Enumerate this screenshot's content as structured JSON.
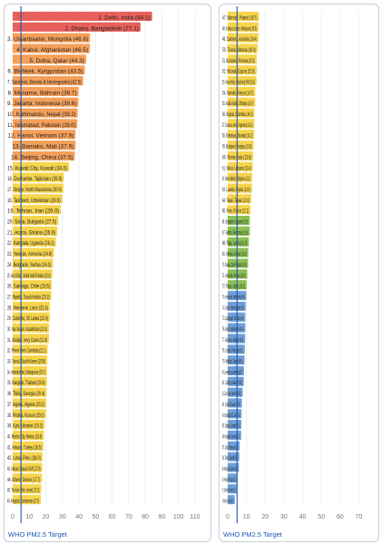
{
  "chart_data": [
    {
      "type": "bar",
      "orientation": "horizontal",
      "xlim": [
        0,
        110
      ],
      "xticks": [
        "0",
        "10",
        "20",
        "30",
        "40",
        "50",
        "60",
        "70",
        "80",
        "90",
        "100",
        "110"
      ],
      "reference_line": {
        "value": 5,
        "label": "WHO PM2.5 Target",
        "color": "#1a56b8"
      },
      "grid": true,
      "categories": [
        "1. Delhi, India (84.1)",
        "2. Dhaka, Bangladesh (77.1)",
        "3. Ulaanbaatar, Mongolia (46.6)",
        "4. Kabul, Afghanistan (46.5)",
        "5. Doha, Qatar (44.3)",
        "6. Bishkek, Kyrgyzstan (43.5)",
        "7. Sarajevo, Bosnia & Herzegovina (42.5)",
        "8. Manama, Bahrain (39.7)",
        "9. Jakarta, Indonesia (39.6)",
        "10. Kathmandu, Nepal (39.2)",
        "11. Islamabad, Pakistan (39.0)",
        "12. Hanoi, Vietnam (37.9)",
        "13. Bamako, Mali (37.9)",
        "14. Beijing, China (37.5)",
        "15. Kuwait City, Kuwait (34.0)",
        "16. Dushanbe, Tajikistan (30.9)",
        "17. Skopje, North Macedonia (30.6)",
        "18. Tashkent, Uzbekistan (29.9)",
        "19. Tehran, Iran (29.0)",
        "20. Sofia, Bulgaria (27.5)",
        "21. Accra, Ghana (26.9)",
        "22. Kampala, Uganda (26.1)",
        "23. Yerevan, Armenia (24.9)",
        "24. Belgrade, Serbia (24.3)",
        "25. Abu Dhabi, United Arab Emirates (23.9)",
        "26. Santiago, Chile (23.6)",
        "27. Riyadh, Saudi Arabia (23.3)",
        "28. Vientiane, Laos (22.4)",
        "29. Colombo, Sri Lanka (22.4)",
        "30. Nur-Sultan, Kazakhstan (21.9)",
        "31. Abidjan, Ivory Coast (21.9)",
        "32. Phnom Penh, Cambodia (21.1)",
        "33. Seoul, South Korea (20.9)",
        "34. Antananarivo, Madagascar (20.7)",
        "35. Bangkok, Thailand (20.6)",
        "36. Tbilisi, Georgia (20.4)",
        "37. Algiers, Algeria (20.2)",
        "38. Pristina, Kosovo (20.0)",
        "39. Kyiv, Ukraine (19.2)",
        "40. Mexico City, Mexico (18.8)",
        "41. Ankara, Turkey (18.5)",
        "42. Lima, Peru (18.0)",
        "43. Macao, Macao SAR (17.8)",
        "44. Athens, Greece (17.7)",
        "45. Tel Aviv-Yafo, Israel (17.2)",
        "46. Ashgabat, Turkmenistan (17.0)"
      ],
      "values": [
        84.1,
        77.1,
        46.6,
        46.5,
        44.3,
        43.5,
        42.5,
        39.7,
        39.6,
        39.2,
        39.0,
        37.9,
        37.9,
        37.5,
        34.0,
        30.9,
        30.6,
        29.9,
        29.0,
        27.5,
        26.9,
        26.1,
        24.9,
        24.3,
        23.9,
        23.6,
        23.3,
        22.4,
        22.4,
        21.9,
        21.9,
        21.1,
        20.9,
        20.7,
        20.6,
        20.4,
        20.2,
        20.0,
        19.2,
        18.8,
        18.5,
        18.0,
        17.8,
        17.7,
        17.2,
        17.0
      ],
      "colors": [
        "#e8605a",
        "#e8605a",
        "#f5a05a",
        "#f5a05a",
        "#f5a05a",
        "#f5a05a",
        "#f5a05a",
        "#f5a05a",
        "#f5a05a",
        "#f5a05a",
        "#f5a05a",
        "#f5a05a",
        "#f5a05a",
        "#f5a05a",
        "#f7d44c",
        "#f7d44c",
        "#f7d44c",
        "#f7d44c",
        "#f7d44c",
        "#f7d44c",
        "#f7d44c",
        "#f7d44c",
        "#f7d44c",
        "#f7d44c",
        "#f7d44c",
        "#f7d44c",
        "#f7d44c",
        "#f7d44c",
        "#f7d44c",
        "#f7d44c",
        "#f7d44c",
        "#f7d44c",
        "#f7d44c",
        "#f7d44c",
        "#f7d44c",
        "#f7d44c",
        "#f7d44c",
        "#f7d44c",
        "#f7d44c",
        "#f7d44c",
        "#f7d44c",
        "#f7d44c",
        "#f7d44c",
        "#f7d44c",
        "#f7d44c",
        "#f7d44c"
      ]
    },
    {
      "type": "bar",
      "orientation": "horizontal",
      "xlim": [
        0,
        78
      ],
      "xticks": [
        "0",
        "10",
        "20",
        "30",
        "40",
        "50",
        "60",
        "70"
      ],
      "reference_line": {
        "value": 5,
        "label": "WHO PM2.5 Target",
        "color": "#1a56b8"
      },
      "grid": true,
      "categories": [
        "47. Warsaw, Poland (16.7)",
        "48. Kuala Lumpur, Malaysia (16.5)",
        "49. Canberra, Australia (16.4)",
        "50. Tirana, Albania (16.0)",
        "51. Bucharest, Romania (15.5)",
        "52. Nicosia, Cyprus (15.5)",
        "53. Hong Kong, Hong Kong SAR (15.4)",
        "54. Nairobi, Kenya (14.7)",
        "55. Addis Ababa, Ethiopia (14.7)",
        "56. Bogota, Colombia (14.3)",
        "57. Buenos Aires, Argentina (14.2)",
        "58. Bratislava, Slovakia (14.2)",
        "59. Budapest, Hungary (13.8)",
        "60. Rome, Italy (13.6)",
        "61. Vilnius, Lithuania (13.4)",
        "62. Metro Manila, Philippines (13.1)",
        "63. Luanda, Angola (13.0)",
        "64. Taipei, Taiwan (12.6)",
        "65. Paris, France (12.2)",
        "66. Singapore, Singapore (11.8)",
        "67. Berlin, Germany (11.8)",
        "68. Riga, Latvia (11.3)",
        "69. Vienna, Austria (11.0)",
        "70. Prauge, Czech Republic (10.9)",
        "71. Moscow, Russia (10.5)",
        "72. Tokyo, Japan (10.1)",
        "73. Amsterdam, Netherlands (9.9)",
        "74. London, United Kingdom (9.6)",
        "75. Copenhagen, Denmark (9.4)",
        "76. Bern, Switzerland (9.4)",
        "77. Brussels, Belgium (9.3)",
        "78. Lisbon, Portugal (9.1)",
        "79. Madrid, Spain (9.0)",
        "80. Luxembourg, Luxembourg (8.7)",
        "81. Dublin, Ireland (8.6)",
        "82. Cape Town, South Africa (8.0)",
        "83. Quito, Ecuador (7.6)",
        "84. Washington DC, USA (7.4)",
        "85. Ottawa, Canada (7.3)",
        "86. Reykjavik, Iceland (7.2)",
        "87. Oslo, Norway (6.4)",
        "88. Tallinn, Estonia (6.2)",
        "89. Wellington City, New Zealand (6.0)",
        "90. Helsinki, Finland (5.2)",
        "91. Stockholm, Sweden (5.1)",
        "92. Charlotte Amalie, U.S. Virgin Islands (3.8)"
      ],
      "values": [
        16.7,
        16.5,
        16.4,
        16.0,
        15.5,
        15.5,
        15.4,
        14.7,
        14.7,
        14.3,
        14.2,
        14.2,
        13.8,
        13.6,
        13.4,
        13.1,
        13.0,
        12.6,
        12.2,
        11.8,
        11.8,
        11.3,
        11.0,
        10.9,
        10.5,
        10.1,
        9.9,
        9.6,
        9.4,
        9.4,
        9.3,
        9.1,
        9.0,
        8.7,
        8.6,
        8.0,
        7.6,
        7.4,
        7.3,
        7.2,
        6.4,
        6.2,
        6.0,
        5.2,
        5.1,
        3.8
      ],
      "colors": [
        "#f7d44c",
        "#f7d44c",
        "#f7d44c",
        "#f7d44c",
        "#f7d44c",
        "#f7d44c",
        "#f7d44c",
        "#f7d44c",
        "#f7d44c",
        "#f7d44c",
        "#f7d44c",
        "#f7d44c",
        "#f7d44c",
        "#f7d44c",
        "#f7d44c",
        "#f7d44c",
        "#f7d44c",
        "#f7d44c",
        "#f7d44c",
        "#8cc152",
        "#8cc152",
        "#8cc152",
        "#8cc152",
        "#8cc152",
        "#8cc152",
        "#8cc152",
        "#6f9fd8",
        "#6f9fd8",
        "#6f9fd8",
        "#6f9fd8",
        "#6f9fd8",
        "#6f9fd8",
        "#6f9fd8",
        "#6f9fd8",
        "#6f9fd8",
        "#6f9fd8",
        "#6f9fd8",
        "#6f9fd8",
        "#6f9fd8",
        "#6f9fd8",
        "#6f9fd8",
        "#6f9fd8",
        "#6f9fd8",
        "#6f9fd8",
        "#6f9fd8",
        "#6f9fd8"
      ]
    }
  ]
}
